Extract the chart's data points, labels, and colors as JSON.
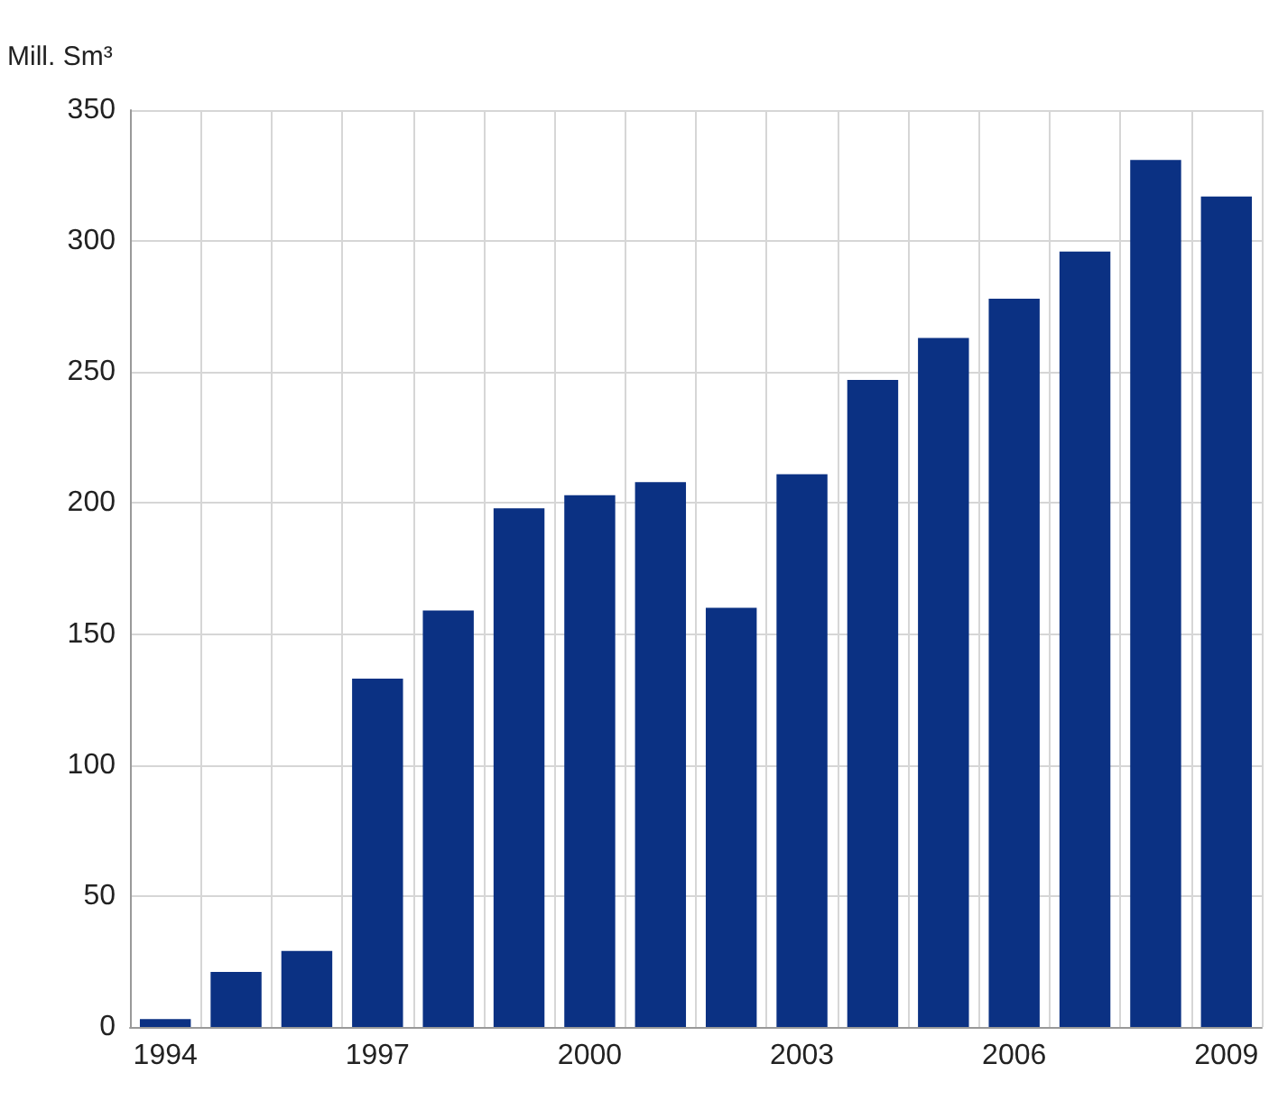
{
  "chart_data": {
    "type": "bar",
    "ylabel": "Mill. Sm³",
    "categories": [
      "1994",
      null,
      null,
      "1997",
      null,
      null,
      "2000",
      null,
      null,
      "2003",
      null,
      null,
      "2006",
      null,
      null,
      "2009"
    ],
    "values": [
      3,
      21,
      29,
      133,
      159,
      198,
      203,
      208,
      160,
      211,
      247,
      263,
      278,
      296,
      331,
      317
    ],
    "color": "#0b3183",
    "ylim": [
      0,
      350
    ],
    "yticks": [
      0,
      50,
      100,
      150,
      200,
      250,
      300,
      350
    ],
    "grid": true
  }
}
